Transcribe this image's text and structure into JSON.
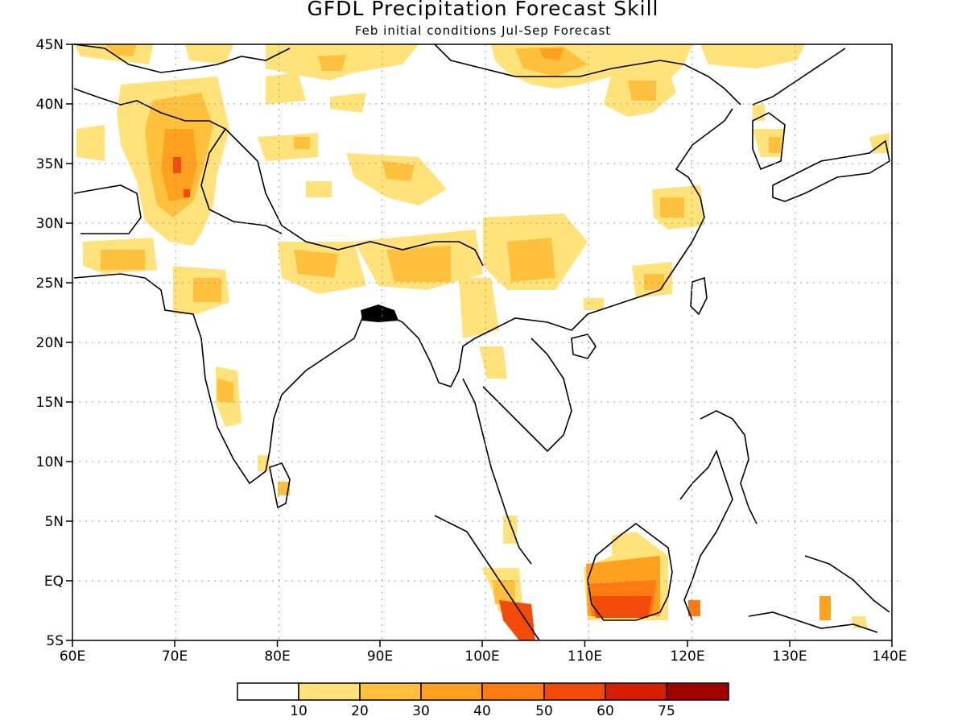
{
  "title": "GFDL Precipitation Forecast Skill",
  "subtitle": "Feb initial conditions  Jul-Sep Forecast",
  "map": {
    "lon_range": [
      60,
      140
    ],
    "lat_range": [
      -5,
      45
    ],
    "x_ticks": [
      "60E",
      "70E",
      "80E",
      "90E",
      "100E",
      "110E",
      "120E",
      "130E",
      "140E"
    ],
    "y_ticks": [
      "45N",
      "40N",
      "35N",
      "30N",
      "25N",
      "20N",
      "15N",
      "10N",
      "5N",
      "EQ",
      "5S"
    ],
    "grid": "dotted"
  },
  "colorbar": {
    "labels": [
      "10",
      "20",
      "30",
      "40",
      "50",
      "60",
      "75"
    ],
    "colors": [
      "#ffffff",
      "#ffe27a",
      "#ffc13d",
      "#ffa01e",
      "#ff7a10",
      "#f24a08",
      "#d81d05",
      "#a00000"
    ]
  }
}
